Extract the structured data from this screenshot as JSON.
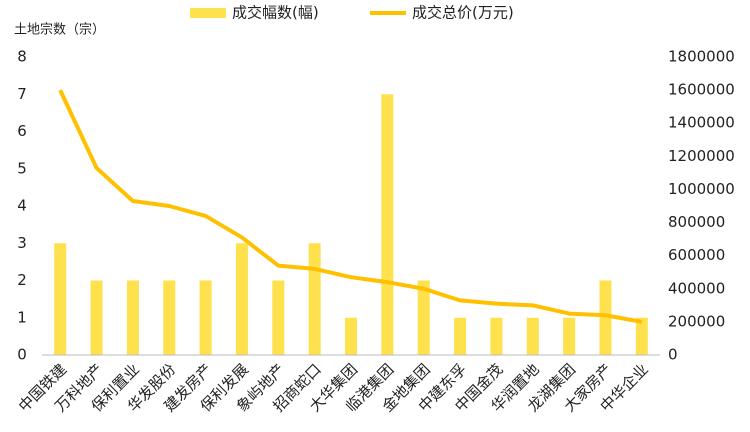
{
  "chart_data": {
    "type": "bar-line",
    "y_label": "土地宗数（宗）",
    "categories": [
      "中国铁建",
      "万科地产",
      "保利置业",
      "华发股份",
      "建发房产",
      "保利发展",
      "象屿地产",
      "招商蛇口",
      "大华集团",
      "临港集团",
      "金地集团",
      "中建东孚",
      "中国金茂",
      "华润置地",
      "龙湖集团",
      "大家房产",
      "中华企业"
    ],
    "series": [
      {
        "name": "成交幅数(幅)",
        "type": "bar",
        "color": "#ffe04d",
        "values": [
          3,
          2,
          2,
          2,
          2,
          3,
          2,
          3,
          1,
          7,
          2,
          1,
          1,
          1,
          1,
          2,
          1
        ]
      },
      {
        "name": "成交总价(万元)",
        "type": "line",
        "axis": "y2",
        "color": "#ffc000",
        "values": [
          1600000,
          1130000,
          930000,
          900000,
          840000,
          710000,
          540000,
          520000,
          470000,
          440000,
          400000,
          330000,
          310000,
          300000,
          250000,
          240000,
          200000
        ]
      }
    ],
    "ylim": [
      0,
      8
    ],
    "yticks": [
      0,
      1,
      2,
      3,
      4,
      5,
      6,
      7,
      8
    ],
    "y2lim": [
      0,
      1800000
    ],
    "y2ticks": [
      0,
      200000,
      400000,
      600000,
      800000,
      1000000,
      1200000,
      1400000,
      1600000,
      1800000
    ],
    "legend": "top"
  }
}
